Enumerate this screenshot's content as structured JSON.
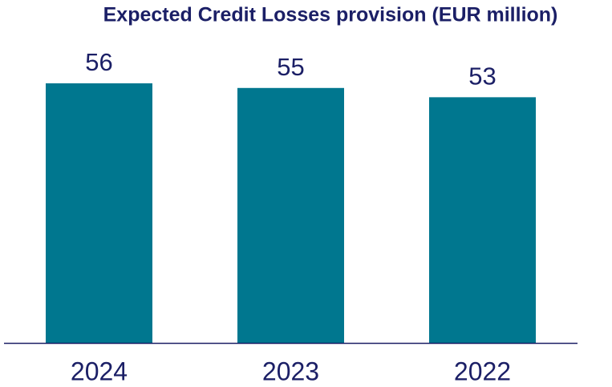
{
  "chart_data": {
    "type": "bar",
    "title": "Expected Credit Losses provision (EUR million)",
    "categories": [
      "2024",
      "2023",
      "2022"
    ],
    "values": [
      56,
      55,
      53
    ],
    "color": "#00778f"
  }
}
